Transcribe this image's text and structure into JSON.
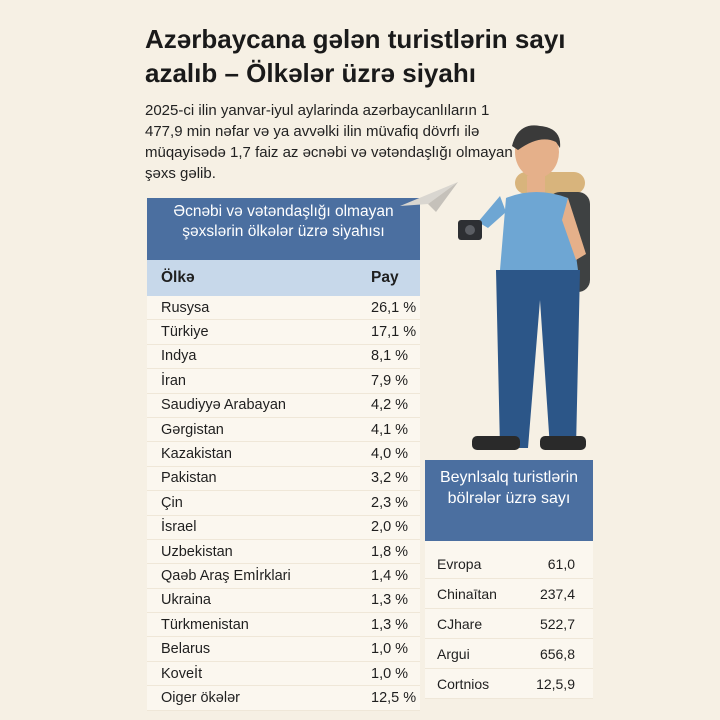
{
  "title": "Azərbaycana gələn turistlərin sayı azalıb – Ölkələr üzrə siyahı",
  "intro": "2025-ci ilin yanvar-iyul aylarinda azərbaycanlıların 1 477,9 min nəfar və ya avvəlki ilin müvafiq dövrfı ilə müqayisədə 1,7 faiz az əcnəbi və vətəndaşlığı olmayan şəxs gəlib.",
  "colors": {
    "header_blue": "#4b6fa0",
    "subheader_blue": "#c7d8ea",
    "background": "#f6f0e4"
  },
  "chart_data": [
    {
      "type": "table",
      "title": "Əcnəbi və vətəndaşlığı olmayan şəxslərin ölkələr üzrə siyahısı",
      "columns": [
        "Ölkə",
        "Pay"
      ],
      "rows": [
        [
          "Rusysa",
          "26,1 %"
        ],
        [
          "Türkiye",
          "17,1 %"
        ],
        [
          "Indya",
          "8,1 %"
        ],
        [
          "İran",
          "7,9 %"
        ],
        [
          "Saudiyyə Arabayan",
          "4,2 %"
        ],
        [
          "Gərgistan",
          "4,1 %"
        ],
        [
          "Kazakistan",
          "4,0 %"
        ],
        [
          "Pakistan",
          "3,2 %"
        ],
        [
          "Çin",
          "2,3 %"
        ],
        [
          "İsrael",
          "2,0 %"
        ],
        [
          "Uzbekistan",
          "1,8 %"
        ],
        [
          "Qaəb Araş Emİrklari",
          "1,4 %"
        ],
        [
          "Ukraina",
          "1,3 %"
        ],
        [
          "Türkmenistan",
          "1,3 %"
        ],
        [
          "Belarus",
          "1,0 %"
        ],
        [
          "Koveİt",
          "1,0 %"
        ],
        [
          "Oiger ökələr",
          "12,5 %"
        ]
      ]
    },
    {
      "type": "table",
      "title": "Beynlзalq turistlərin bölrələr üzrə sayı",
      "rows": [
        [
          "Evropa",
          "61,0"
        ],
        [
          "Chinaītan",
          "237,4"
        ],
        [
          "CJhare",
          "522,7"
        ],
        [
          "Argui",
          "656,8"
        ],
        [
          "Cortnios",
          "12,5,9"
        ]
      ]
    }
  ]
}
